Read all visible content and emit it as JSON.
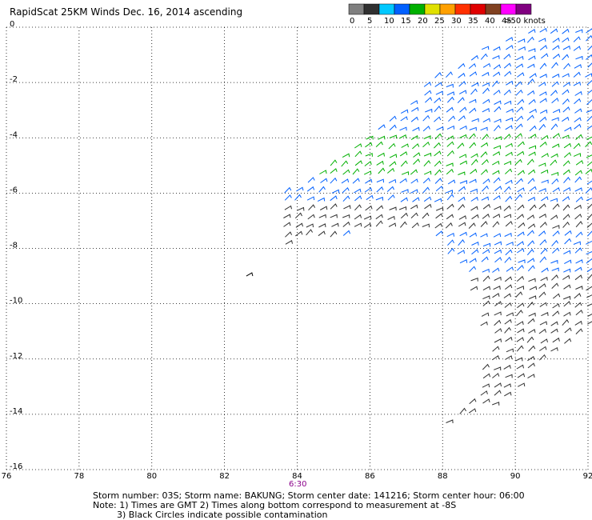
{
  "title": "RapidScat 25KM Winds Dec. 16, 2014 ascending",
  "time_label": "6:30",
  "notes": {
    "line1": "Storm number: 03S;  Storm name: BAKUNG;  Storm center date: 141216;  Storm center hour: 06:00",
    "line2": "Note: 1) Times are GMT  2) Times along bottom correspond to measurement at -8S",
    "line3": "3) Black Circles indicate possible contamination"
  },
  "chart_data": {
    "type": "scatter",
    "subtype": "wind-barbs",
    "xlim": [
      76,
      92
    ],
    "ylim": [
      -16,
      0
    ],
    "x_ticks": [
      "76",
      "78",
      "80",
      "82",
      "84",
      "86",
      "88",
      "90",
      "92"
    ],
    "y_ticks": [
      "0",
      "-2",
      "-4",
      "-6",
      "-8",
      "-10",
      "-12",
      "-14",
      "-16"
    ],
    "grid": true,
    "legend": {
      "placement": "top-right",
      "labels": [
        "0",
        "5",
        "10",
        "15",
        "20",
        "25",
        "30",
        "35",
        "40",
        "45",
        ">50 knots"
      ],
      "colors": [
        "#7f7f7f",
        "#303030",
        "#00c8ff",
        "#0060ff",
        "#00b000",
        "#e0e000",
        "#ffa000",
        "#ff3000",
        "#e00000",
        "#804020",
        "#ff00ff",
        "#800080"
      ]
    },
    "swath": {
      "upper_edge": [
        [
          83.5,
          -6.0
        ],
        [
          84.5,
          -5.2
        ],
        [
          85.5,
          -4.4
        ],
        [
          86.5,
          -3.4
        ],
        [
          87.5,
          -2.0
        ],
        [
          88.5,
          -1.2
        ],
        [
          89.5,
          -0.5
        ],
        [
          90.5,
          -0.1
        ],
        [
          92.0,
          0.0
        ]
      ],
      "lower_edge": [
        [
          83.5,
          -7.9
        ],
        [
          85.5,
          -7.6
        ],
        [
          87.5,
          -7.3
        ],
        [
          88.5,
          -8.8
        ],
        [
          89.2,
          -11.5
        ],
        [
          89.0,
          -13.3
        ],
        [
          87.5,
          -14.6
        ],
        [
          90.0,
          -13.4
        ],
        [
          90.6,
          -12.2
        ],
        [
          92.0,
          -10.8
        ]
      ],
      "isolated_obs": [
        [
          82.6,
          -9.0
        ]
      ]
    },
    "speed_bands": [
      {
        "lat_min": -0.5,
        "lat_max": 0.0,
        "speed_kt": 12
      },
      {
        "lat_min": -2.5,
        "lat_max": -0.5,
        "speed_kt": 10
      },
      {
        "lat_min": -4.0,
        "lat_max": -2.5,
        "speed_kt": 13
      },
      {
        "lat_min": -5.5,
        "lat_max": -4.0,
        "speed_kt": 17
      },
      {
        "lat_min": -6.5,
        "lat_max": -5.5,
        "speed_kt": 13
      },
      {
        "lat_min": -7.5,
        "lat_max": -6.5,
        "speed_kt": 4
      },
      {
        "lat_min": -9.0,
        "lat_max": -7.5,
        "speed_kt": 14
      },
      {
        "lat_min": -16.0,
        "lat_max": -9.0,
        "speed_kt": 4
      }
    ]
  }
}
